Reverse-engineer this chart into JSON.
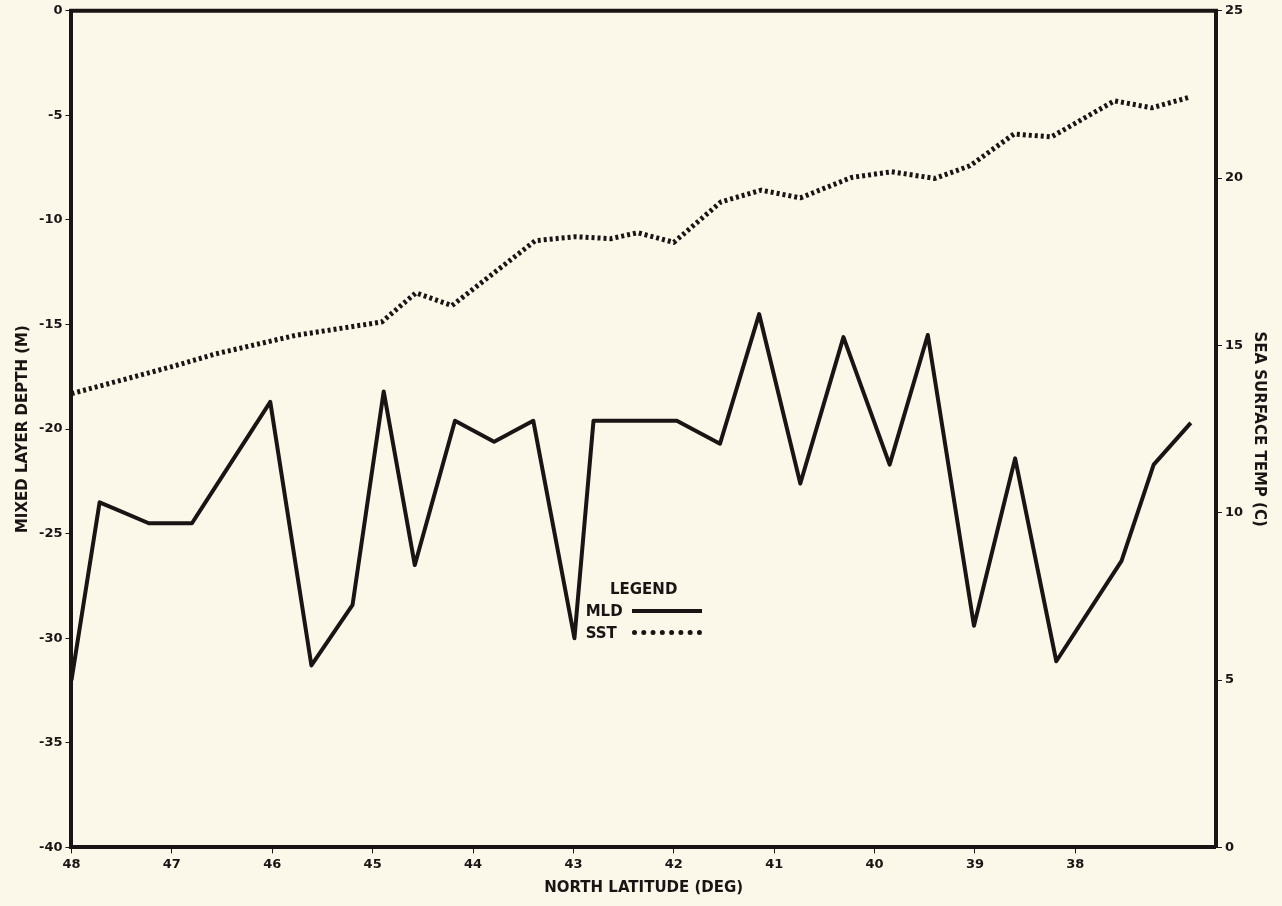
{
  "chart_data": {
    "type": "line",
    "xlabel": "NORTH LATITUDE (DEG)",
    "ylabel": "MIXED LAYER DEPTH (M)",
    "y2label": "SEA SURFACE TEMP (C)",
    "legend_title": "LEGEND",
    "legend": "center",
    "grid": false,
    "marker": "none",
    "xlim": [
      48,
      36.6
    ],
    "xticks": [
      48,
      47,
      46,
      45,
      44,
      43,
      42,
      41,
      40,
      39,
      38
    ],
    "ylim": [
      -40,
      0
    ],
    "yticks": [
      0,
      -5,
      -10,
      -15,
      -20,
      -25,
      -30,
      -35,
      -40
    ],
    "y2lim": [
      0,
      25
    ],
    "y2ticks": [
      0,
      5,
      10,
      15,
      20,
      25
    ],
    "series": [
      {
        "name": "MLD",
        "color": "#1a1414",
        "line_style": "solid",
        "x": [
          48,
          47.72,
          47.23,
          46.8,
          46.02,
          45.61,
          45.2,
          44.89,
          44.58,
          44.18,
          43.79,
          43.4,
          42.99,
          42.8,
          41.97,
          41.54,
          41.15,
          40.74,
          40.31,
          39.85,
          39.47,
          39.01,
          38.6,
          38.19,
          37.54,
          37.22,
          36.85
        ],
        "values": [
          -32,
          -23.5,
          -24.5,
          -24.5,
          -18.7,
          -31.3,
          -28.4,
          -18.2,
          -26.5,
          -19.6,
          -20.6,
          -19.6,
          -30,
          -19.6,
          -19.6,
          -20.7,
          -14.5,
          -22.6,
          -15.6,
          -21.7,
          -15.5,
          -29.4,
          -21.4,
          -31.1,
          -26.3,
          -21.7,
          -19.7
        ]
      },
      {
        "name": "SST",
        "color": "#1a1414",
        "line_style": "dotted",
        "axis": "y2",
        "x": [
          48,
          46.96,
          46.56,
          45.77,
          44.91,
          44.57,
          44.21,
          43.38,
          42.98,
          42.63,
          42.36,
          42.0,
          41.53,
          41.13,
          40.74,
          40.23,
          39.83,
          39.4,
          39.05,
          38.61,
          38.24,
          37.61,
          37.24,
          36.86
        ],
        "values": [
          13.56,
          14.4,
          14.75,
          15.3,
          15.7,
          16.57,
          16.19,
          18.13,
          18.25,
          18.19,
          18.37,
          18.08,
          19.29,
          19.64,
          19.41,
          20.02,
          20.19,
          19.99,
          20.37,
          21.32,
          21.23,
          22.31,
          22.1,
          22.42
        ]
      }
    ]
  }
}
